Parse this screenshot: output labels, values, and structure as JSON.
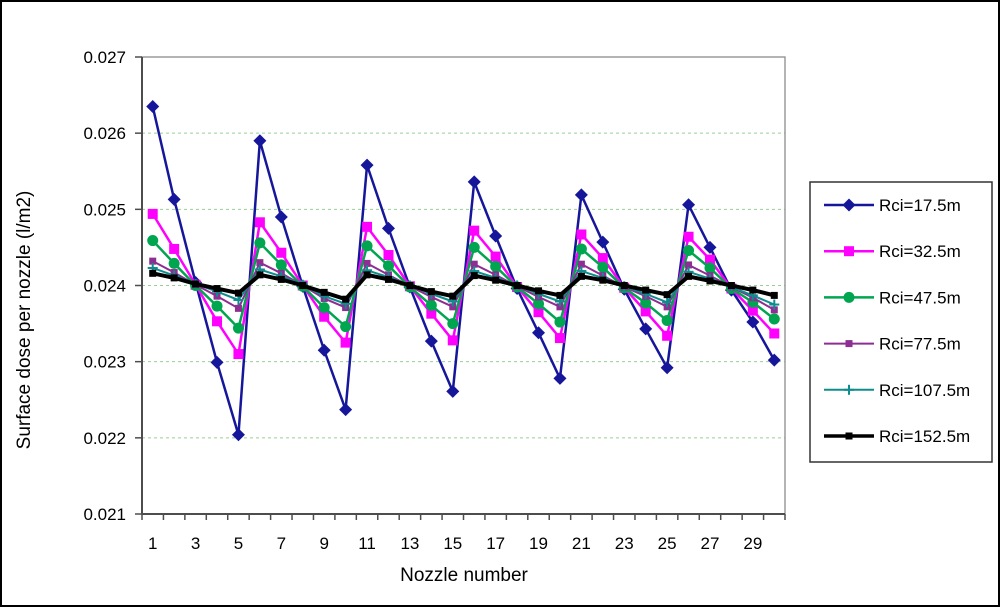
{
  "page": {
    "background": "#FFFFFF",
    "outer_border_color": "#000000"
  },
  "chart_data": {
    "type": "line",
    "title": "",
    "xlabel": "Nozzle number",
    "ylabel": "Surface dose per nozzle (l/m2)",
    "x_categories": [
      1,
      2,
      3,
      4,
      5,
      6,
      7,
      8,
      9,
      10,
      11,
      12,
      13,
      14,
      15,
      16,
      17,
      18,
      19,
      20,
      21,
      22,
      23,
      24,
      25,
      26,
      27,
      28,
      29,
      30
    ],
    "x_tick_labels_shown": [
      "1",
      "3",
      "5",
      "7",
      "9",
      "11",
      "13",
      "15",
      "17",
      "19",
      "21",
      "23",
      "25",
      "27",
      "29"
    ],
    "y_ticks": [
      "0.027",
      "0.026",
      "0.025",
      "0.024",
      "0.023",
      "0.022",
      "0.021"
    ],
    "ylim": [
      0.021,
      0.027
    ],
    "grid": {
      "horizontal": true,
      "style": "dashed",
      "color": "#96D096"
    },
    "axis_color": "#4D4D4D",
    "plot_border_color": "#8C8C8C",
    "legend": {
      "position": "right",
      "border_color": "#333333",
      "background": "#FFFFFF"
    },
    "series": [
      {
        "name": "Rci=17.5m",
        "color": "#16169B",
        "marker": "diamond",
        "marker_size": 6.5,
        "line_width": 2.5,
        "values": [
          0.02635,
          0.02513,
          0.02404,
          0.02299,
          0.02204,
          0.0259,
          0.0249,
          0.02399,
          0.02315,
          0.02237,
          0.02558,
          0.02475,
          0.02398,
          0.02327,
          0.02261,
          0.02536,
          0.02465,
          0.02396,
          0.02338,
          0.02278,
          0.02519,
          0.02457,
          0.02395,
          0.02343,
          0.02292,
          0.02506,
          0.0245,
          0.02394,
          0.02352,
          0.02302
        ]
      },
      {
        "name": "Rci=32.5m",
        "color": "#FF00FF",
        "marker": "square",
        "marker_size": 5,
        "line_width": 2.5,
        "values": [
          0.02494,
          0.02448,
          0.02401,
          0.02353,
          0.0231,
          0.02483,
          0.02443,
          0.024,
          0.02359,
          0.02325,
          0.02477,
          0.0244,
          0.02399,
          0.02363,
          0.02328,
          0.02472,
          0.02438,
          0.02398,
          0.02365,
          0.02331,
          0.02467,
          0.02436,
          0.02397,
          0.02366,
          0.02334,
          0.02464,
          0.02434,
          0.02396,
          0.02367,
          0.02337
        ]
      },
      {
        "name": "Rci=47.5m",
        "color": "#00A550",
        "marker": "circle",
        "marker_size": 5.5,
        "line_width": 2.5,
        "values": [
          0.02459,
          0.02429,
          0.024,
          0.02373,
          0.02344,
          0.02456,
          0.02427,
          0.02399,
          0.02371,
          0.02346,
          0.02452,
          0.02426,
          0.02398,
          0.02374,
          0.0235,
          0.0245,
          0.02425,
          0.02398,
          0.02376,
          0.02352,
          0.02448,
          0.02424,
          0.02397,
          0.02377,
          0.02354,
          0.02446,
          0.02423,
          0.02396,
          0.02378,
          0.02356
        ]
      },
      {
        "name": "Rci=77.5m",
        "color": "#8E2D92",
        "marker": "square-small",
        "marker_size": 3.5,
        "line_width": 2,
        "values": [
          0.02432,
          0.02417,
          0.02401,
          0.02386,
          0.0237,
          0.0243,
          0.02416,
          0.024,
          0.02383,
          0.02371,
          0.02429,
          0.02414,
          0.02399,
          0.02385,
          0.02372,
          0.02428,
          0.02414,
          0.02399,
          0.02385,
          0.02372,
          0.02428,
          0.02413,
          0.02398,
          0.02386,
          0.02372,
          0.02427,
          0.02413,
          0.02398,
          0.02384,
          0.02368
        ]
      },
      {
        "name": "Rci=107.5m",
        "color": "#0D8D8D",
        "marker": "plus",
        "marker_size": 5,
        "line_width": 2,
        "values": [
          0.02423,
          0.02413,
          0.02402,
          0.02392,
          0.02381,
          0.02421,
          0.02412,
          0.02401,
          0.02386,
          0.02376,
          0.0242,
          0.02411,
          0.024,
          0.02389,
          0.02379,
          0.02419,
          0.0241,
          0.024,
          0.02389,
          0.02379,
          0.02419,
          0.0241,
          0.02399,
          0.02389,
          0.02378,
          0.02418,
          0.02409,
          0.02398,
          0.02387,
          0.02375
        ]
      },
      {
        "name": "Rci=152.5m",
        "color": "#000000",
        "marker": "square-small",
        "marker_size": 3.5,
        "line_width": 4,
        "values": [
          0.02416,
          0.0241,
          0.02402,
          0.02396,
          0.0239,
          0.02414,
          0.02408,
          0.024,
          0.02391,
          0.02382,
          0.02414,
          0.02408,
          0.024,
          0.02392,
          0.02386,
          0.02413,
          0.02407,
          0.024,
          0.02393,
          0.02387,
          0.02412,
          0.02407,
          0.024,
          0.02394,
          0.02388,
          0.02412,
          0.02406,
          0.024,
          0.02394,
          0.02387
        ]
      }
    ]
  }
}
